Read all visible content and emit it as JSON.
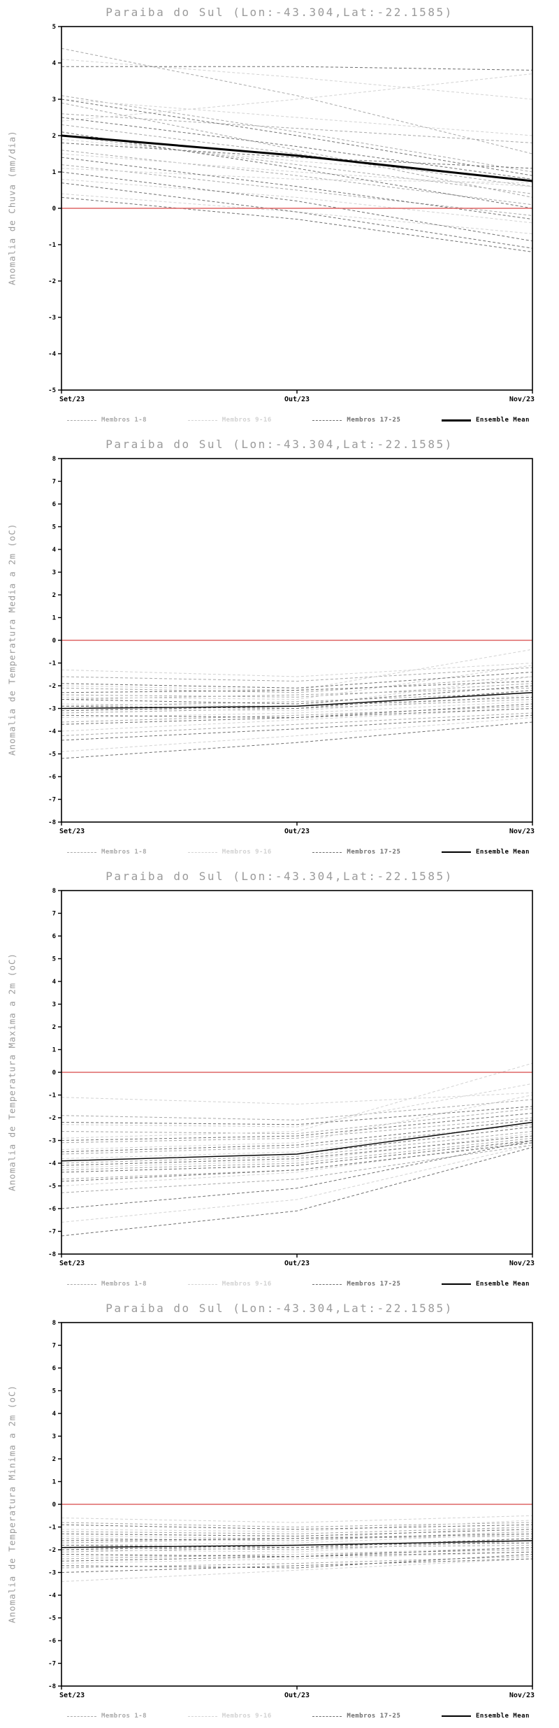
{
  "chart_data": [
    {
      "type": "line",
      "title": "Paraiba do Sul (Lon:-43.304,Lat:-22.1585)",
      "ylabel": "Anomalia de Chuva (mm/dia)",
      "ylim": [
        -5,
        5
      ],
      "ytick_step": 1,
      "x_labels": [
        "Set/23",
        "Out/23",
        "Nov/23"
      ],
      "grid": false,
      "legend_position": "bottom",
      "zero_color": "#dd6666",
      "zero_line": [
        0,
        0,
        0
      ],
      "mean_width": 3,
      "ensemble_mean": [
        2.0,
        1.45,
        0.75
      ],
      "legend": [
        {
          "label": "Membros 1-8",
          "color": "#a8a8a8",
          "dash": true
        },
        {
          "label": "Membros 9-16",
          "color": "#d2d2d2",
          "dash": true
        },
        {
          "label": "Membros 17-25",
          "color": "#6e6e6e",
          "dash": true
        },
        {
          "label": "Ensemble Mean",
          "color": "#000000",
          "dash": false
        }
      ],
      "groups": [
        {
          "name": "Membros 1-8",
          "color": "#a8a8a8",
          "members": [
            [
              4.4,
              3.1,
              1.5
            ],
            [
              3.1,
              2.1,
              1.0
            ],
            [
              2.9,
              1.6,
              0.3
            ],
            [
              2.6,
              2.2,
              1.8
            ],
            [
              2.3,
              1.5,
              0.6
            ],
            [
              2.0,
              1.2,
              0.4
            ],
            [
              1.6,
              0.9,
              0.1
            ],
            [
              1.2,
              0.5,
              -0.2
            ]
          ]
        },
        {
          "name": "Membros 9-16",
          "color": "#d2d2d2",
          "members": [
            [
              4.1,
              3.6,
              3.0
            ],
            [
              3.0,
              2.5,
              2.0
            ],
            [
              2.4,
              3.0,
              3.7
            ],
            [
              1.9,
              1.3,
              0.8
            ],
            [
              1.5,
              1.0,
              0.6
            ],
            [
              1.1,
              0.8,
              0.7
            ],
            [
              0.8,
              0.3,
              -0.4
            ],
            [
              0.4,
              -0.1,
              -0.7
            ]
          ]
        },
        {
          "name": "Membros 17-25",
          "color": "#6e6e6e",
          "members": [
            [
              3.9,
              3.9,
              3.8
            ],
            [
              3.0,
              2.0,
              0.9
            ],
            [
              2.5,
              1.7,
              0.8
            ],
            [
              2.1,
              1.1,
              0.0
            ],
            [
              1.8,
              1.4,
              1.1
            ],
            [
              1.4,
              0.6,
              -0.3
            ],
            [
              1.0,
              0.2,
              -0.9
            ],
            [
              0.7,
              -0.1,
              -1.1
            ],
            [
              0.3,
              -0.3,
              -1.2
            ]
          ]
        }
      ]
    },
    {
      "type": "line",
      "title": "Paraiba do Sul (Lon:-43.304,Lat:-22.1585)",
      "ylabel": "Anomalia de Temperatura Media a 2m (oC)",
      "ylim": [
        -8,
        8
      ],
      "ytick_step": 1,
      "x_labels": [
        "Set/23",
        "Out/23",
        "Nov/23"
      ],
      "grid": false,
      "legend_position": "bottom",
      "zero_color": "#dd6666",
      "zero_line": [
        0,
        0,
        0
      ],
      "mean_width": 1.4,
      "ensemble_mean": [
        -3.0,
        -2.9,
        -2.3
      ],
      "legend": [
        {
          "label": "Membros 1-8",
          "color": "#a8a8a8",
          "dash": true
        },
        {
          "label": "Membros 9-16",
          "color": "#d2d2d2",
          "dash": true
        },
        {
          "label": "Membros 17-25",
          "color": "#6e6e6e",
          "dash": true
        },
        {
          "label": "Ensemble Mean",
          "color": "#000000",
          "dash": false
        }
      ],
      "groups": [
        {
          "name": "Membros 1-8",
          "color": "#a8a8a8",
          "members": [
            [
              -1.6,
              -1.8,
              -1.2
            ],
            [
              -2.1,
              -2.3,
              -1.6
            ],
            [
              -2.4,
              -2.5,
              -1.9
            ],
            [
              -2.6,
              -2.4,
              -2.1
            ],
            [
              -2.9,
              -2.7,
              -2.3
            ],
            [
              -3.2,
              -3.0,
              -2.6
            ],
            [
              -3.6,
              -3.3,
              -2.9
            ],
            [
              -4.2,
              -3.7,
              -3.2
            ]
          ]
        },
        {
          "name": "Membros 9-16",
          "color": "#d2d2d2",
          "members": [
            [
              -1.3,
              -1.6,
              -1.0
            ],
            [
              -2.0,
              -2.2,
              -0.4
            ],
            [
              -2.5,
              -2.6,
              -1.1
            ],
            [
              -2.8,
              -2.9,
              -1.6
            ],
            [
              -3.0,
              -3.1,
              -2.4
            ],
            [
              -3.4,
              -3.2,
              -2.7
            ],
            [
              -4.0,
              -3.5,
              -3.0
            ],
            [
              -4.9,
              -4.2,
              -3.4
            ]
          ]
        },
        {
          "name": "Membros 17-25",
          "color": "#6e6e6e",
          "members": [
            [
              -1.9,
              -2.1,
              -1.4
            ],
            [
              -2.3,
              -2.2,
              -1.8
            ],
            [
              -2.6,
              -2.8,
              -2.0
            ],
            [
              -2.9,
              -3.0,
              -2.2
            ],
            [
              -3.1,
              -2.9,
              -2.5
            ],
            [
              -3.3,
              -3.4,
              -2.8
            ],
            [
              -3.7,
              -3.4,
              -3.0
            ],
            [
              -4.4,
              -3.9,
              -3.3
            ],
            [
              -5.2,
              -4.5,
              -3.6
            ]
          ]
        }
      ]
    },
    {
      "type": "line",
      "title": "Paraiba do Sul (Lon:-43.304,Lat:-22.1585)",
      "ylabel": "Anomalia de Temperatura Maxima a 2m (oC)",
      "ylim": [
        -8,
        8
      ],
      "ytick_step": 1,
      "x_labels": [
        "Set/23",
        "Out/23",
        "Nov/23"
      ],
      "grid": false,
      "legend_position": "bottom",
      "zero_color": "#dd6666",
      "zero_line": [
        0,
        0,
        0
      ],
      "mean_width": 1.4,
      "ensemble_mean": [
        -3.9,
        -3.6,
        -2.2
      ],
      "legend": [
        {
          "label": "Membros 1-8",
          "color": "#a8a8a8",
          "dash": true
        },
        {
          "label": "Membros 9-16",
          "color": "#d2d2d2",
          "dash": true
        },
        {
          "label": "Membros 17-25",
          "color": "#6e6e6e",
          "dash": true
        },
        {
          "label": "Ensemble Mean",
          "color": "#000000",
          "dash": false
        }
      ],
      "groups": [
        {
          "name": "Membros 1-8",
          "color": "#a8a8a8",
          "members": [
            [
              -1.9,
              -2.1,
              -1.2
            ],
            [
              -2.6,
              -2.7,
              -1.6
            ],
            [
              -3.1,
              -2.9,
              -2.0
            ],
            [
              -3.6,
              -3.3,
              -2.3
            ],
            [
              -4.0,
              -3.7,
              -2.6
            ],
            [
              -4.3,
              -4.0,
              -2.9
            ],
            [
              -4.7,
              -4.3,
              -3.1
            ],
            [
              -5.3,
              -4.7,
              -3.2
            ]
          ]
        },
        {
          "name": "Membros 9-16",
          "color": "#d2d2d2",
          "members": [
            [
              -1.1,
              -1.4,
              -0.9
            ],
            [
              -2.3,
              -2.4,
              -0.5
            ],
            [
              -2.9,
              -2.6,
              0.4
            ],
            [
              -3.4,
              -3.1,
              -1.0
            ],
            [
              -3.8,
              -3.5,
              -2.2
            ],
            [
              -4.2,
              -3.9,
              -2.7
            ],
            [
              -5.0,
              -4.4,
              -3.0
            ],
            [
              -6.6,
              -5.6,
              -3.2
            ]
          ]
        },
        {
          "name": "Membros 17-25",
          "color": "#6e6e6e",
          "members": [
            [
              -2.2,
              -2.3,
              -1.5
            ],
            [
              -3.0,
              -2.8,
              -1.8
            ],
            [
              -3.5,
              -3.2,
              -2.1
            ],
            [
              -3.9,
              -3.6,
              -2.4
            ],
            [
              -4.1,
              -3.8,
              -2.8
            ],
            [
              -4.4,
              -4.1,
              -3.0
            ],
            [
              -4.8,
              -4.3,
              -3.1
            ],
            [
              -6.0,
              -5.1,
              -3.0
            ],
            [
              -7.2,
              -6.1,
              -3.3
            ]
          ]
        }
      ]
    },
    {
      "type": "line",
      "title": "Paraiba do Sul (Lon:-43.304,Lat:-22.1585)",
      "ylabel": "Anomalia de Temperatura Minima a 2m (oC)",
      "ylim": [
        -8,
        8
      ],
      "ytick_step": 1,
      "x_labels": [
        "Set/23",
        "Out/23",
        "Nov/23"
      ],
      "grid": false,
      "legend_position": "bottom",
      "zero_color": "#dd6666",
      "zero_line": [
        0,
        0,
        0
      ],
      "mean_width": 1.4,
      "ensemble_mean": [
        -1.9,
        -1.8,
        -1.6
      ],
      "legend": [
        {
          "label": "Membros 1-8",
          "color": "#a8a8a8",
          "dash": true
        },
        {
          "label": "Membros 9-16",
          "color": "#d2d2d2",
          "dash": true
        },
        {
          "label": "Membros 17-25",
          "color": "#6e6e6e",
          "dash": true
        },
        {
          "label": "Ensemble Mean",
          "color": "#000000",
          "dash": false
        }
      ],
      "groups": [
        {
          "name": "Membros 1-8",
          "color": "#a8a8a8",
          "members": [
            [
              -0.8,
              -1.0,
              -0.8
            ],
            [
              -1.2,
              -1.3,
              -1.0
            ],
            [
              -1.5,
              -1.6,
              -1.2
            ],
            [
              -1.7,
              -1.5,
              -1.4
            ],
            [
              -1.9,
              -2.0,
              -1.6
            ],
            [
              -2.1,
              -1.9,
              -1.8
            ],
            [
              -2.4,
              -2.2,
              -2.0
            ],
            [
              -2.8,
              -2.6,
              -2.3
            ]
          ]
        },
        {
          "name": "Membros 9-16",
          "color": "#d2d2d2",
          "members": [
            [
              -0.6,
              -0.8,
              -0.5
            ],
            [
              -1.1,
              -1.2,
              -0.7
            ],
            [
              -1.4,
              -1.5,
              -1.0
            ],
            [
              -1.8,
              -1.7,
              -1.3
            ],
            [
              -2.0,
              -2.1,
              -1.5
            ],
            [
              -2.3,
              -2.2,
              -1.9
            ],
            [
              -2.6,
              -2.4,
              -2.1
            ],
            [
              -3.4,
              -2.9,
              -2.4
            ]
          ]
        },
        {
          "name": "Membros 17-25",
          "color": "#6e6e6e",
          "members": [
            [
              -0.9,
              -1.1,
              -0.9
            ],
            [
              -1.3,
              -1.4,
              -1.1
            ],
            [
              -1.6,
              -1.5,
              -1.3
            ],
            [
              -1.8,
              -1.9,
              -1.5
            ],
            [
              -2.0,
              -1.8,
              -1.7
            ],
            [
              -2.2,
              -2.3,
              -1.9
            ],
            [
              -2.5,
              -2.3,
              -2.1
            ],
            [
              -2.7,
              -2.8,
              -2.2
            ],
            [
              -3.0,
              -2.7,
              -2.4
            ]
          ]
        }
      ]
    }
  ]
}
